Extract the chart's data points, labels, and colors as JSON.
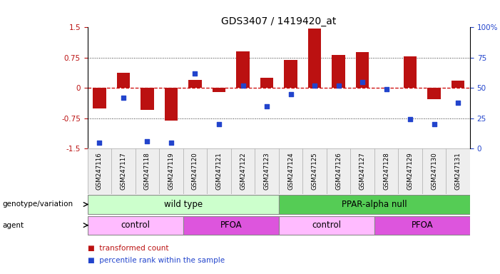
{
  "title": "GDS3407 / 1419420_at",
  "samples": [
    "GSM247116",
    "GSM247117",
    "GSM247118",
    "GSM247119",
    "GSM247120",
    "GSM247121",
    "GSM247122",
    "GSM247123",
    "GSM247124",
    "GSM247125",
    "GSM247126",
    "GSM247127",
    "GSM247128",
    "GSM247129",
    "GSM247130",
    "GSM247131"
  ],
  "bar_values": [
    -0.5,
    0.38,
    -0.55,
    -0.8,
    0.2,
    -0.1,
    0.9,
    0.25,
    0.7,
    1.48,
    0.82,
    0.88,
    0.0,
    0.78,
    -0.28,
    0.18
  ],
  "blue_values": [
    5,
    42,
    6,
    5,
    62,
    20,
    52,
    35,
    45,
    52,
    52,
    55,
    49,
    24,
    20,
    38
  ],
  "ylim_left": [
    -1.5,
    1.5
  ],
  "ylim_right": [
    0,
    100
  ],
  "yticks_left": [
    -1.5,
    -0.75,
    0,
    0.75,
    1.5
  ],
  "yticks_right": [
    0,
    25,
    50,
    75,
    100
  ],
  "bar_color": "#BB1111",
  "blue_color": "#2244CC",
  "zero_line_color": "#CC0000",
  "dotted_line_color": "#333333",
  "background_color": "#ffffff",
  "groups": [
    {
      "label": "wild type",
      "start": 0,
      "end": 8,
      "color": "#ccffcc"
    },
    {
      "label": "PPAR-alpha null",
      "start": 8,
      "end": 16,
      "color": "#55cc55"
    }
  ],
  "agents": [
    {
      "label": "control",
      "start": 0,
      "end": 4,
      "color": "#ffbbff"
    },
    {
      "label": "PFOA",
      "start": 4,
      "end": 8,
      "color": "#dd55dd"
    },
    {
      "label": "control",
      "start": 8,
      "end": 12,
      "color": "#ffbbff"
    },
    {
      "label": "PFOA",
      "start": 12,
      "end": 16,
      "color": "#dd55dd"
    }
  ]
}
